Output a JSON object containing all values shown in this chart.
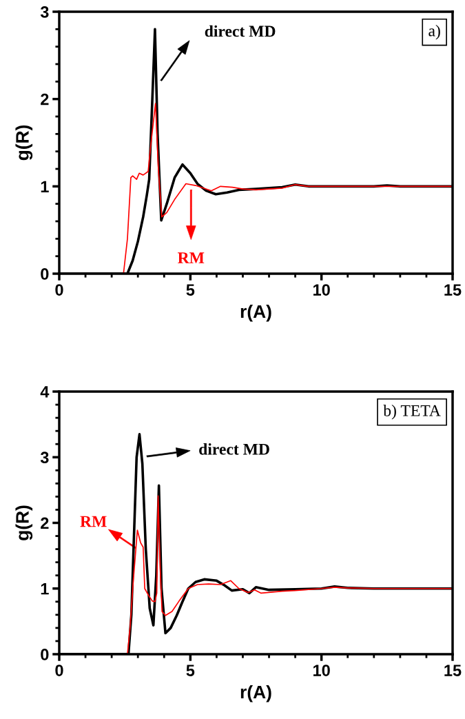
{
  "chart_data": [
    {
      "type": "line",
      "xlabel": "r(A)",
      "ylabel": "g(R)",
      "xlim": [
        0,
        15
      ],
      "ylim": [
        0,
        3
      ],
      "xticks": [
        0,
        {
          "value": 1,
          "label": null
        },
        {
          "value": 2,
          "label": null
        },
        {
          "value": 3,
          "label": null
        },
        {
          "value": 4,
          "label": null
        },
        5,
        {
          "value": 6,
          "label": null
        },
        {
          "value": 7,
          "label": null
        },
        {
          "value": 8,
          "label": null
        },
        {
          "value": 9,
          "label": null
        },
        10,
        {
          "value": 11,
          "label": null
        },
        {
          "value": 12,
          "label": null
        },
        {
          "value": 13,
          "label": null
        },
        {
          "value": 14,
          "label": null
        },
        15
      ],
      "yticks": [
        0,
        {
          "value": 0.2,
          "label": null
        },
        {
          "value": 0.4,
          "label": null
        },
        {
          "value": 0.6,
          "label": null
        },
        {
          "value": 0.8,
          "label": null
        },
        1,
        {
          "value": 1.2,
          "label": null
        },
        {
          "value": 1.4,
          "label": null
        },
        {
          "value": 1.6,
          "label": null
        },
        {
          "value": 1.8,
          "label": null
        },
        2,
        {
          "value": 2.2,
          "label": null
        },
        {
          "value": 2.4,
          "label": null
        },
        {
          "value": 2.6,
          "label": null
        },
        {
          "value": 2.8,
          "label": null
        },
        3
      ],
      "grid": false,
      "legend": false,
      "marker": "none",
      "line_style": "solid",
      "series": [
        {
          "color": "#000000",
          "x": [
            0,
            2.6,
            2.8,
            3.0,
            3.2,
            3.34,
            3.43,
            3.55,
            3.65,
            3.75,
            3.89,
            4.1,
            4.4,
            4.7,
            5.0,
            5.27,
            5.6,
            5.97,
            6.4,
            6.85,
            7.5,
            8.0,
            8.5,
            9.0,
            9.5,
            10,
            11,
            12,
            12.5,
            13,
            14,
            15
          ],
          "values": [
            0,
            0,
            0.15,
            0.37,
            0.65,
            0.9,
            1.08,
            2.0,
            2.8,
            1.6,
            0.61,
            0.8,
            1.1,
            1.25,
            1.15,
            1.03,
            0.95,
            0.91,
            0.93,
            0.96,
            0.97,
            0.98,
            0.99,
            1.02,
            1.0,
            1.0,
            1.0,
            1.0,
            1.01,
            1.0,
            1.0,
            1.0
          ]
        },
        {
          "color": "#ff0000",
          "x": [
            0,
            2.45,
            2.6,
            2.73,
            2.8,
            2.95,
            3.05,
            3.2,
            3.39,
            3.5,
            3.67,
            3.78,
            3.91,
            4.1,
            4.4,
            4.83,
            5.2,
            5.8,
            6.15,
            6.6,
            7.0,
            7.5,
            8.0,
            8.5,
            9.0,
            9.5,
            10,
            11,
            12,
            13,
            14,
            15
          ],
          "values": [
            0,
            0,
            0.4,
            1.1,
            1.12,
            1.08,
            1.15,
            1.13,
            1.17,
            1.5,
            1.95,
            1.2,
            0.65,
            0.7,
            0.85,
            1.03,
            1.01,
            0.95,
            1.0,
            0.99,
            0.97,
            0.96,
            0.97,
            0.98,
            1.02,
            1.0,
            1.0,
            1.0,
            1.0,
            1.0,
            1.0,
            1.0
          ]
        }
      ],
      "annotations": [
        "direct MD",
        "RM",
        "a)"
      ]
    },
    {
      "type": "line",
      "xlabel": "r(A)",
      "ylabel": "g(R)",
      "xlim": [
        0,
        15
      ],
      "ylim": [
        0,
        4
      ],
      "xticks": [
        0,
        {
          "value": 1,
          "label": null
        },
        {
          "value": 2,
          "label": null
        },
        {
          "value": 3,
          "label": null
        },
        {
          "value": 4,
          "label": null
        },
        5,
        {
          "value": 6,
          "label": null
        },
        {
          "value": 7,
          "label": null
        },
        {
          "value": 8,
          "label": null
        },
        {
          "value": 9,
          "label": null
        },
        10,
        {
          "value": 11,
          "label": null
        },
        {
          "value": 12,
          "label": null
        },
        {
          "value": 13,
          "label": null
        },
        {
          "value": 14,
          "label": null
        },
        15
      ],
      "yticks": [
        0,
        {
          "value": 0.2,
          "label": null
        },
        {
          "value": 0.4,
          "label": null
        },
        {
          "value": 0.6,
          "label": null
        },
        {
          "value": 0.8,
          "label": null
        },
        1,
        {
          "value": 1.2,
          "label": null
        },
        {
          "value": 1.4,
          "label": null
        },
        {
          "value": 1.6,
          "label": null
        },
        {
          "value": 1.8,
          "label": null
        },
        2,
        {
          "value": 2.2,
          "label": null
        },
        {
          "value": 2.4,
          "label": null
        },
        {
          "value": 2.6,
          "label": null
        },
        {
          "value": 2.8,
          "label": null
        },
        3,
        {
          "value": 3.2,
          "label": null
        },
        {
          "value": 3.4,
          "label": null
        },
        {
          "value": 3.6,
          "label": null
        },
        {
          "value": 3.8,
          "label": null
        },
        4
      ],
      "grid": false,
      "legend": false,
      "marker": "none",
      "line_style": "solid",
      "series": [
        {
          "color": "#000000",
          "x": [
            0,
            2.64,
            2.75,
            2.85,
            2.95,
            3.06,
            3.17,
            3.3,
            3.45,
            3.59,
            3.7,
            3.8,
            3.9,
            4.05,
            4.25,
            4.48,
            4.7,
            4.92,
            5.2,
            5.53,
            6.0,
            6.3,
            6.58,
            7.0,
            7.25,
            7.5,
            8.0,
            9.0,
            10.0,
            10.5,
            11,
            12,
            13,
            14,
            15
          ],
          "values": [
            0,
            0,
            0.6,
            1.8,
            3.0,
            3.35,
            2.9,
            1.6,
            0.7,
            0.44,
            1.2,
            2.57,
            1.0,
            0.32,
            0.4,
            0.59,
            0.8,
            1.0,
            1.1,
            1.14,
            1.12,
            1.05,
            0.97,
            0.99,
            0.93,
            1.02,
            0.98,
            0.99,
            1.0,
            1.03,
            1.01,
            1.0,
            1.0,
            1.0,
            1.0
          ]
        },
        {
          "color": "#ff0000",
          "x": [
            0,
            2.6,
            2.7,
            2.82,
            2.98,
            3.1,
            3.2,
            3.26,
            3.4,
            3.55,
            3.65,
            3.72,
            3.77,
            3.85,
            3.92,
            4.05,
            4.3,
            4.57,
            4.92,
            5.27,
            5.7,
            6.15,
            6.54,
            6.85,
            7.2,
            7.45,
            7.7,
            8.5,
            9.0,
            10.0,
            10.5,
            11,
            12,
            13,
            14,
            15
          ],
          "values": [
            0,
            0,
            0.4,
            1.1,
            1.89,
            1.7,
            1.63,
            1.0,
            0.9,
            0.81,
            0.8,
            0.93,
            2.41,
            1.3,
            0.65,
            0.59,
            0.65,
            0.81,
            1.0,
            1.06,
            1.07,
            1.06,
            1.12,
            1.0,
            0.94,
            0.98,
            0.93,
            0.96,
            0.97,
            1.0,
            1.02,
            1.01,
            1.0,
            1.0,
            1.0,
            1.0
          ]
        }
      ],
      "annotations": [
        "direct MD",
        "RM",
        "b) TETA"
      ]
    }
  ]
}
